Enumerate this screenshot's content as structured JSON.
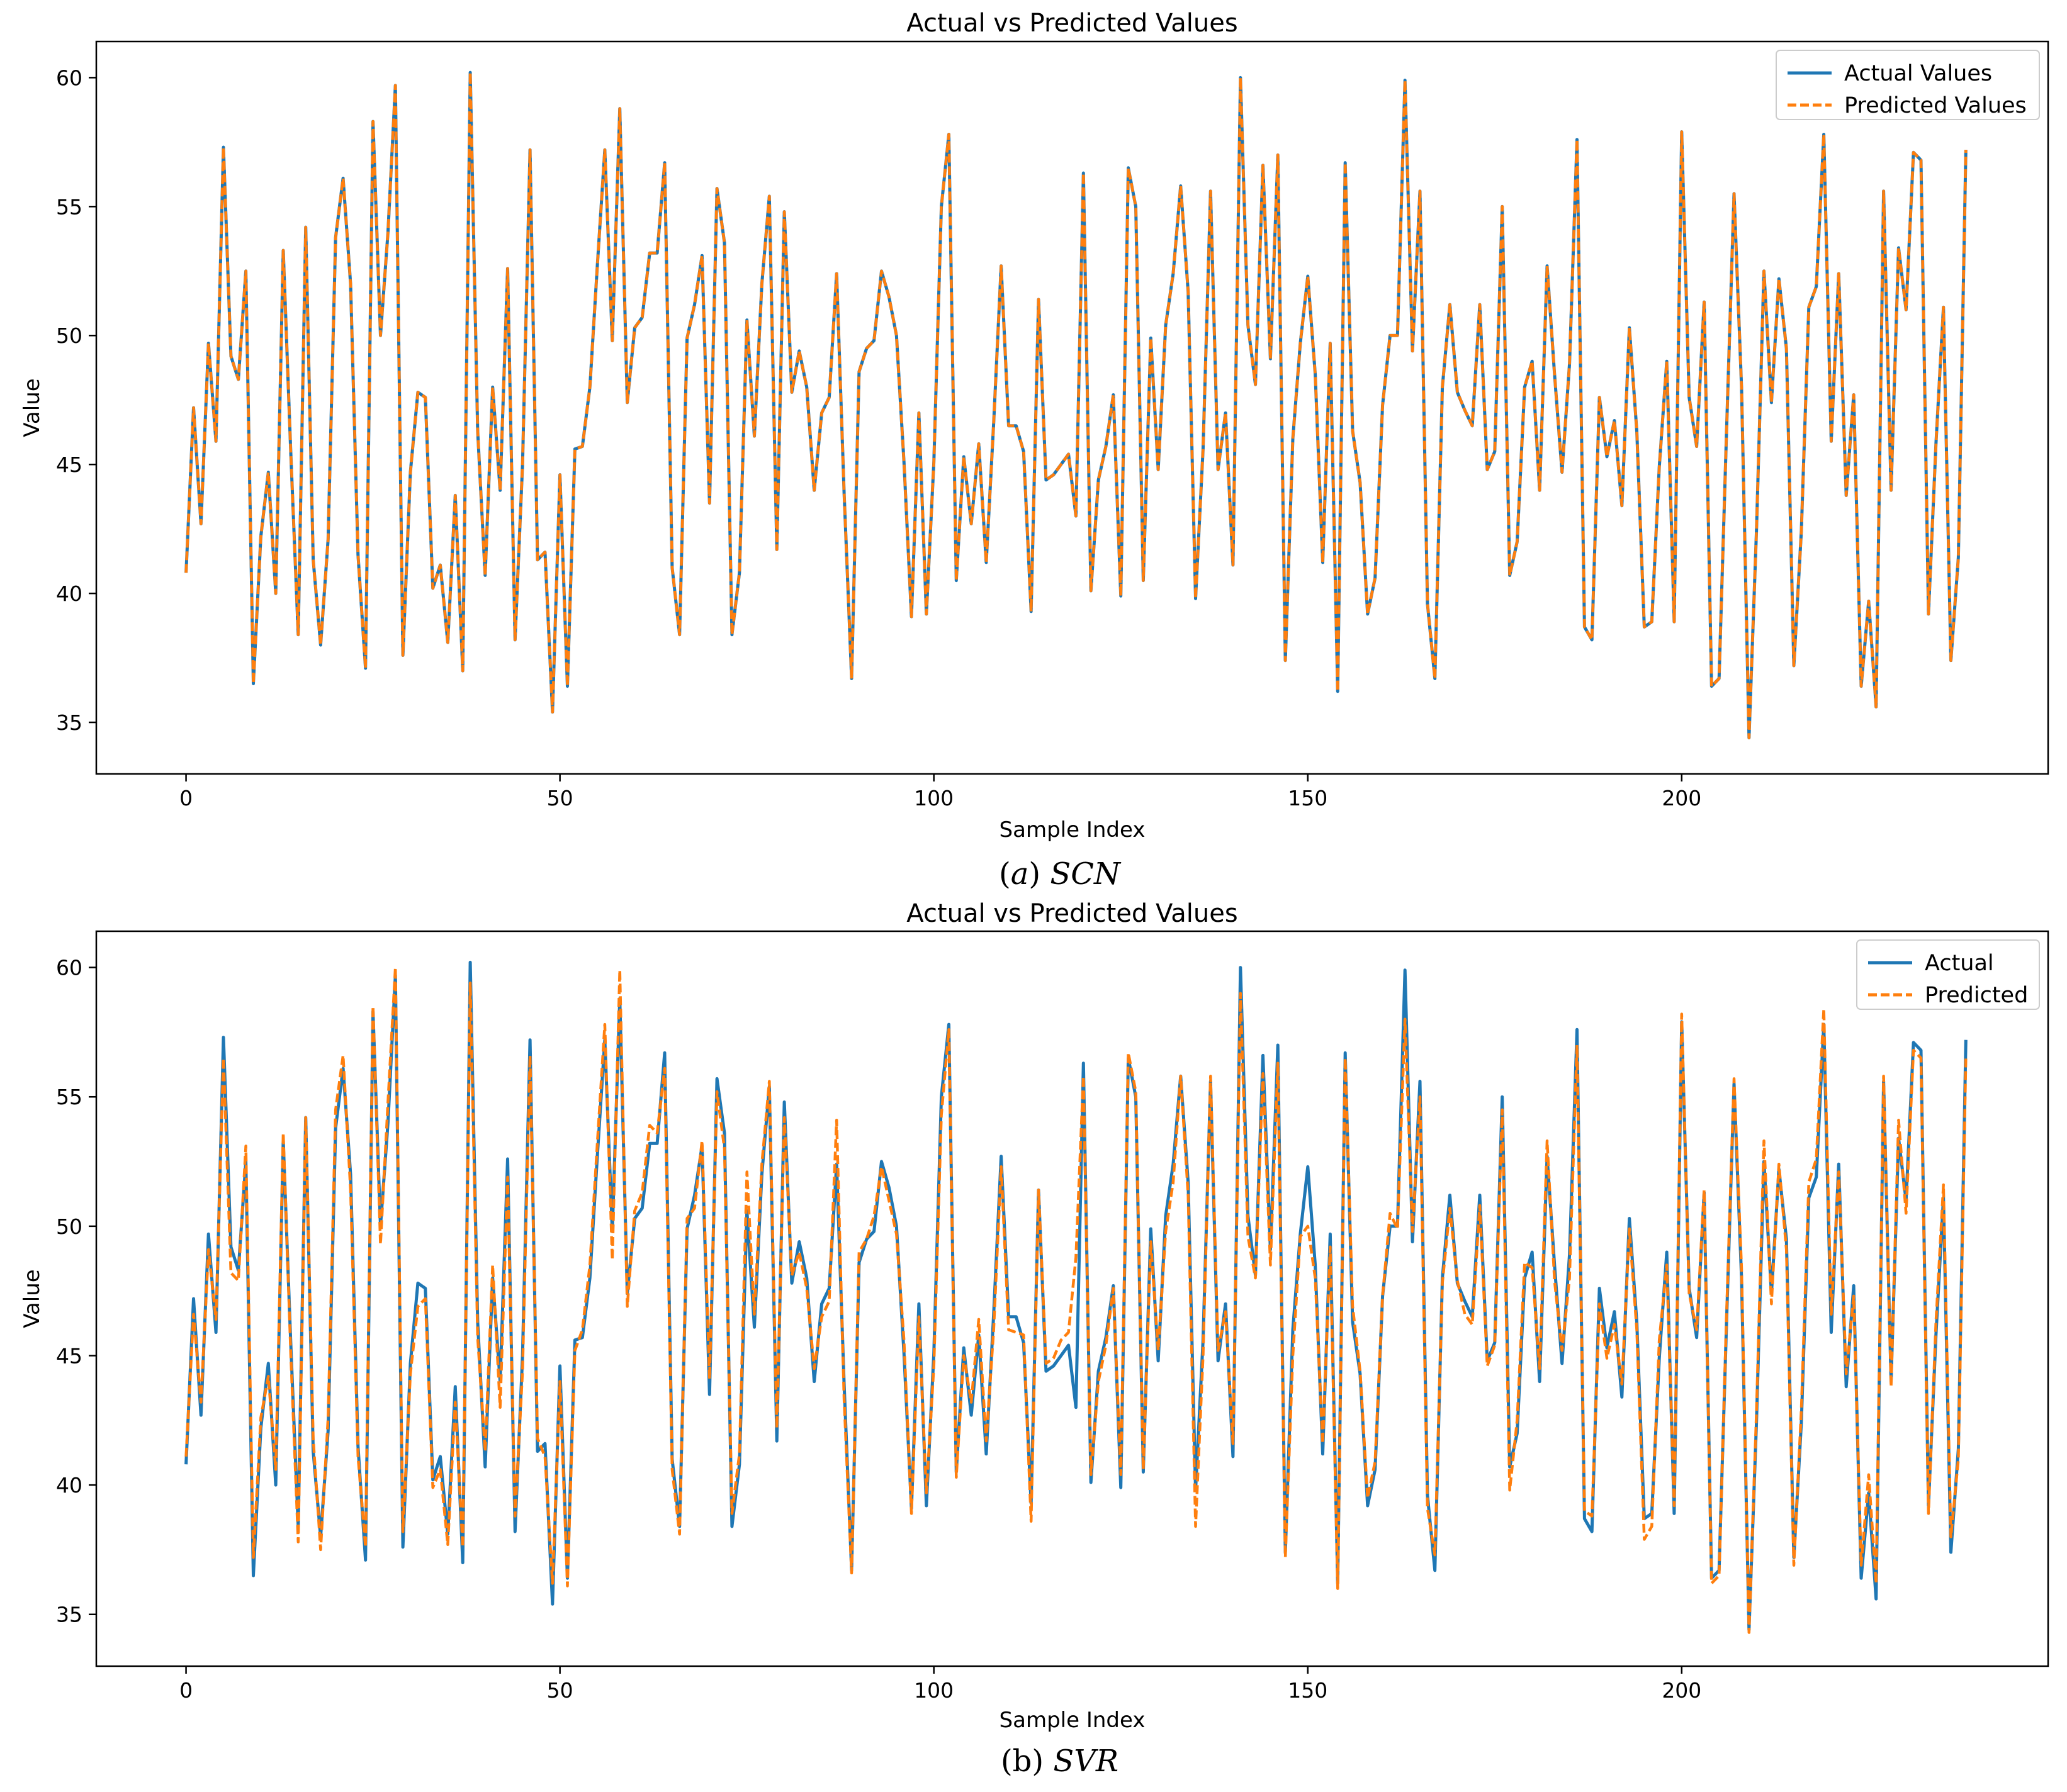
{
  "chart_data": [
    {
      "type": "line",
      "title": "Actual vs Predicted Values",
      "xlabel": "Sample Index",
      "ylabel": "Value",
      "xlim": [
        -12,
        249
      ],
      "ylim": [
        33,
        61.4
      ],
      "xticks": [
        0,
        50,
        100,
        150,
        200
      ],
      "yticks": [
        35,
        40,
        45,
        50,
        55,
        60
      ],
      "grid": false,
      "legend_position": "top-right",
      "caption": {
        "prefix": "(",
        "letter": "a",
        "suffix": ") ",
        "model": "SCN"
      },
      "series": [
        {
          "name": "Actual Values",
          "color": "#1f77b4",
          "style": "solid",
          "source": "actual"
        },
        {
          "name": "Predicted Values",
          "color": "#ff7f0e",
          "style": "dashed",
          "source": "pred_a"
        }
      ]
    },
    {
      "type": "line",
      "title": "Actual vs Predicted Values",
      "xlabel": "Sample Index",
      "ylabel": "Value",
      "xlim": [
        -12,
        249
      ],
      "ylim": [
        33,
        61.4
      ],
      "xticks": [
        0,
        50,
        100,
        150,
        200
      ],
      "yticks": [
        35,
        40,
        45,
        50,
        55,
        60
      ],
      "grid": false,
      "legend_position": "top-right",
      "caption": {
        "prefix": "(b) ",
        "letter": "",
        "suffix": "",
        "model": "SVR"
      },
      "series": [
        {
          "name": "Actual",
          "color": "#1f77b4",
          "style": "solid",
          "source": "actual"
        },
        {
          "name": "Predicted",
          "color": "#ff7f0e",
          "style": "dashed",
          "source": "pred_b"
        }
      ]
    }
  ],
  "values": {
    "actual": [
      40.8,
      47.2,
      42.7,
      49.7,
      45.9,
      57.3,
      49.2,
      48.3,
      52.5,
      36.5,
      42.2,
      44.7,
      40.0,
      53.3,
      45.5,
      38.4,
      54.2,
      41.3,
      38.0,
      42.1,
      53.8,
      56.1,
      52.0,
      41.5,
      37.1,
      58.3,
      50.0,
      54.0,
      59.7,
      37.6,
      44.7,
      47.8,
      47.6,
      40.2,
      41.1,
      38.1,
      43.8,
      37.0,
      60.2,
      46.3,
      40.7,
      48.0,
      44.0,
      52.6,
      38.2,
      45.0,
      57.2,
      41.3,
      41.6,
      35.4,
      44.6,
      36.4,
      45.6,
      45.7,
      48.0,
      52.7,
      57.2,
      49.8,
      58.8,
      47.4,
      50.3,
      50.7,
      53.2,
      53.2,
      56.7,
      41.0,
      38.4,
      49.9,
      51.2,
      53.1,
      43.5,
      55.7,
      53.6,
      38.4,
      40.8,
      50.6,
      46.1,
      52.0,
      55.4,
      41.7,
      54.8,
      47.8,
      49.4,
      48.0,
      44.0,
      47.0,
      47.6,
      52.4,
      43.9,
      36.7,
      48.6,
      49.5,
      49.8,
      52.5,
      51.5,
      50.0,
      45.1,
      39.1,
      47.0,
      39.2,
      45.1,
      55.0,
      57.8,
      40.5,
      45.3,
      42.7,
      45.8,
      41.2,
      46.6,
      52.7,
      46.5,
      46.5,
      45.5,
      39.3,
      51.4,
      44.4,
      44.6,
      45.0,
      45.4,
      43.0,
      56.3,
      40.1,
      44.4,
      45.7,
      47.7,
      39.9,
      56.5,
      55.0,
      40.5,
      49.9,
      44.8,
      50.4,
      52.4,
      55.8,
      51.7,
      39.8,
      45.6,
      55.6,
      44.8,
      47.0,
      41.1,
      60.0,
      50.4,
      48.1,
      56.6,
      49.1,
      57.0,
      37.4,
      46.0,
      49.7,
      52.3,
      48.5,
      41.2,
      49.7,
      36.2,
      56.7,
      46.3,
      44.3,
      39.2,
      40.6,
      47.3,
      50.0,
      50.0,
      59.9,
      49.4,
      55.6,
      39.6,
      36.7,
      48.0,
      51.2,
      47.8,
      47.1,
      46.5,
      51.2,
      44.8,
      45.5,
      55.0,
      40.7,
      42.0,
      48.0,
      49.0,
      44.0,
      52.7,
      48.5,
      44.7,
      48.9,
      57.6,
      38.7,
      38.2,
      47.6,
      45.3,
      46.7,
      43.4,
      50.3,
      46.3,
      38.7,
      38.9,
      44.9,
      49.0,
      38.9,
      57.9,
      47.6,
      45.7,
      51.3,
      36.4,
      36.7,
      46.3,
      55.5,
      48.0,
      34.4,
      42.4,
      52.5,
      47.4,
      52.2,
      49.5,
      37.2,
      42.4,
      51.1,
      51.9,
      57.8,
      45.9,
      52.4,
      43.8,
      47.7,
      36.4,
      39.7,
      35.6,
      55.6,
      44.0,
      53.4,
      51.0,
      57.1,
      56.8,
      39.2,
      45.8,
      51.1,
      37.4,
      41.4,
      57.2
    ],
    "pred_a": [
      40.8,
      47.2,
      42.7,
      49.7,
      45.9,
      57.3,
      49.2,
      48.3,
      52.5,
      36.5,
      42.2,
      44.7,
      40.0,
      53.3,
      45.5,
      38.4,
      54.2,
      41.3,
      38.0,
      42.1,
      53.8,
      56.1,
      52.0,
      41.5,
      37.1,
      58.3,
      50.0,
      54.0,
      59.7,
      37.6,
      44.7,
      47.8,
      47.6,
      40.2,
      41.1,
      38.1,
      43.8,
      37.0,
      60.2,
      46.3,
      40.7,
      48.0,
      44.0,
      52.6,
      38.2,
      45.0,
      57.2,
      41.3,
      41.6,
      35.4,
      44.6,
      36.4,
      45.6,
      45.7,
      48.0,
      52.7,
      57.2,
      49.8,
      58.8,
      47.4,
      50.3,
      50.7,
      53.2,
      53.2,
      56.7,
      41.0,
      38.4,
      49.9,
      51.2,
      53.1,
      43.5,
      55.7,
      53.6,
      38.4,
      40.8,
      50.6,
      46.1,
      52.0,
      55.4,
      41.7,
      54.8,
      47.8,
      49.4,
      48.0,
      44.0,
      47.0,
      47.6,
      52.4,
      43.9,
      36.7,
      48.6,
      49.5,
      49.8,
      52.5,
      51.5,
      50.0,
      45.1,
      39.1,
      47.0,
      39.2,
      45.1,
      55.0,
      57.8,
      40.5,
      45.3,
      42.7,
      45.8,
      41.2,
      46.6,
      52.7,
      46.5,
      46.5,
      45.5,
      39.3,
      51.4,
      44.4,
      44.6,
      45.0,
      45.4,
      43.0,
      56.3,
      40.1,
      44.4,
      45.7,
      47.7,
      39.9,
      56.5,
      55.0,
      40.5,
      49.9,
      44.8,
      50.4,
      52.4,
      55.8,
      51.7,
      39.8,
      45.6,
      55.6,
      44.8,
      47.0,
      41.1,
      60.0,
      50.4,
      48.1,
      56.6,
      49.1,
      57.0,
      37.4,
      46.0,
      49.7,
      52.3,
      48.5,
      41.2,
      49.7,
      36.2,
      56.7,
      46.3,
      44.3,
      39.2,
      40.6,
      47.3,
      50.0,
      50.0,
      59.9,
      49.4,
      55.6,
      39.6,
      36.7,
      48.0,
      51.2,
      47.8,
      47.1,
      46.5,
      51.2,
      44.8,
      45.5,
      55.0,
      40.7,
      42.0,
      48.0,
      49.0,
      44.0,
      52.7,
      48.5,
      44.7,
      48.9,
      57.6,
      38.7,
      38.2,
      47.6,
      45.3,
      46.7,
      43.4,
      50.3,
      46.3,
      38.7,
      38.9,
      44.9,
      49.0,
      38.9,
      57.9,
      47.6,
      45.7,
      51.3,
      36.4,
      36.7,
      46.3,
      55.5,
      48.0,
      34.4,
      42.4,
      52.5,
      47.4,
      52.2,
      49.5,
      37.2,
      42.4,
      51.1,
      51.9,
      57.8,
      45.9,
      52.4,
      43.8,
      47.7,
      36.4,
      39.7,
      35.6,
      55.6,
      44.0,
      53.4,
      51.0,
      57.1,
      56.8,
      39.2,
      45.8,
      51.1,
      37.4,
      41.4,
      57.2
    ],
    "pred_b": [
      41.1,
      46.6,
      43.2,
      49.1,
      46.4,
      56.5,
      48.2,
      47.9,
      53.1,
      37.2,
      42.6,
      44.2,
      40.6,
      53.6,
      45.1,
      37.8,
      54.2,
      41.8,
      37.5,
      42.6,
      54.5,
      56.6,
      51.4,
      41.1,
      37.6,
      58.5,
      49.3,
      54.8,
      60.0,
      38.2,
      44.3,
      46.9,
      47.2,
      39.9,
      40.6,
      37.7,
      43.2,
      37.6,
      59.4,
      45.7,
      41.3,
      48.5,
      43.0,
      51.9,
      38.8,
      44.4,
      56.6,
      41.8,
      41.1,
      36.2,
      44.0,
      36.1,
      45.2,
      46.0,
      48.5,
      53.2,
      57.8,
      48.7,
      59.9,
      46.9,
      50.6,
      51.3,
      53.9,
      53.6,
      56.1,
      40.6,
      38.1,
      50.3,
      50.7,
      53.3,
      44.1,
      55.2,
      53.0,
      38.9,
      41.2,
      52.1,
      46.6,
      52.4,
      55.6,
      42.2,
      54.2,
      48.1,
      49.0,
      47.6,
      44.5,
      46.5,
      47.1,
      54.1,
      43.3,
      36.6,
      49.0,
      49.5,
      50.4,
      52.3,
      51.0,
      49.7,
      45.6,
      38.9,
      46.5,
      39.7,
      44.6,
      54.3,
      57.6,
      40.3,
      45.0,
      43.2,
      46.4,
      41.7,
      46.0,
      52.3,
      46.0,
      45.9,
      45.8,
      38.6,
      51.4,
      44.7,
      44.9,
      45.6,
      45.9,
      48.8,
      55.8,
      40.4,
      44.0,
      45.4,
      47.6,
      40.4,
      56.7,
      55.2,
      40.6,
      49.4,
      45.2,
      49.8,
      51.7,
      55.8,
      51.2,
      38.4,
      45.0,
      55.8,
      45.2,
      46.7,
      41.6,
      59.0,
      49.6,
      48.0,
      55.9,
      48.5,
      56.3,
      37.2,
      45.0,
      49.6,
      50.0,
      48.0,
      41.6,
      49.2,
      36.0,
      56.5,
      46.9,
      44.4,
      39.5,
      40.9,
      47.3,
      50.5,
      49.9,
      58.0,
      49.8,
      55.0,
      39.1,
      37.3,
      47.8,
      50.7,
      47.9,
      46.6,
      46.2,
      50.8,
      44.6,
      45.4,
      54.5,
      39.8,
      42.5,
      48.6,
      48.4,
      44.5,
      53.3,
      47.9,
      45.2,
      48.0,
      57.0,
      39.0,
      38.8,
      47.0,
      44.9,
      46.2,
      43.9,
      49.9,
      46.0,
      37.9,
      38.4,
      45.6,
      48.5,
      39.2,
      58.2,
      47.4,
      46.0,
      51.4,
      36.2,
      36.5,
      46.6,
      55.7,
      48.4,
      34.3,
      42.8,
      53.3,
      47.0,
      52.4,
      49.1,
      36.9,
      42.9,
      51.7,
      52.6,
      58.4,
      46.6,
      52.1,
      44.3,
      47.3,
      36.9,
      40.4,
      36.2,
      55.8,
      43.8,
      54.1,
      50.5,
      56.8,
      56.5,
      38.9,
      46.3,
      51.6,
      38.0,
      41.0,
      56.5
    ]
  }
}
